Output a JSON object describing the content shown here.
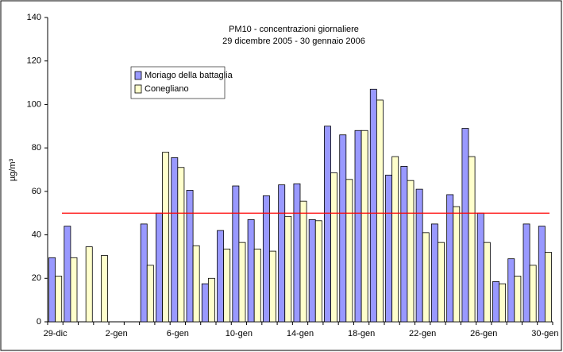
{
  "chart_data": {
    "type": "bar",
    "title": "PM10 - concentrazioni giornaliere",
    "subtitle": "29 dicembre 2005 - 30 gennaio 2006",
    "y_label": "µg/m³",
    "categories": [
      "29-dic",
      null,
      null,
      null,
      "2-gen",
      null,
      null,
      null,
      "6-gen",
      null,
      null,
      null,
      "10-gen",
      null,
      null,
      null,
      "14-gen",
      null,
      null,
      null,
      "18-gen",
      null,
      null,
      null,
      "22-gen",
      null,
      null,
      null,
      "26-gen",
      null,
      null,
      null,
      "30-gen"
    ],
    "series": [
      {
        "name": "Moriago della battaglia",
        "color": "#9999ff",
        "values": [
          29.5,
          44,
          null,
          null,
          null,
          null,
          45,
          50,
          75.5,
          60.5,
          17.5,
          42,
          62.5,
          47,
          58,
          63,
          63.5,
          47,
          90,
          86,
          88,
          107,
          67.5,
          71.5,
          61,
          45,
          58.5,
          89,
          50,
          18.5,
          29,
          45,
          44
        ]
      },
      {
        "name": "Conegliano",
        "color": "#ffffcc",
        "values": [
          21,
          29.5,
          34.5,
          30.5,
          null,
          null,
          26,
          78,
          71,
          35,
          20,
          33.5,
          36.5,
          33.5,
          32.5,
          48.5,
          55.5,
          46.5,
          68.5,
          65.5,
          88,
          102,
          76,
          65,
          41,
          36.5,
          53,
          76,
          36.5,
          17.5,
          21,
          26,
          32
        ]
      }
    ],
    "limit": {
      "value": 50,
      "color": "#ff0000"
    },
    "ylim": [
      0,
      140
    ],
    "yticks": [
      0,
      20,
      40,
      60,
      80,
      100,
      120,
      140
    ]
  }
}
